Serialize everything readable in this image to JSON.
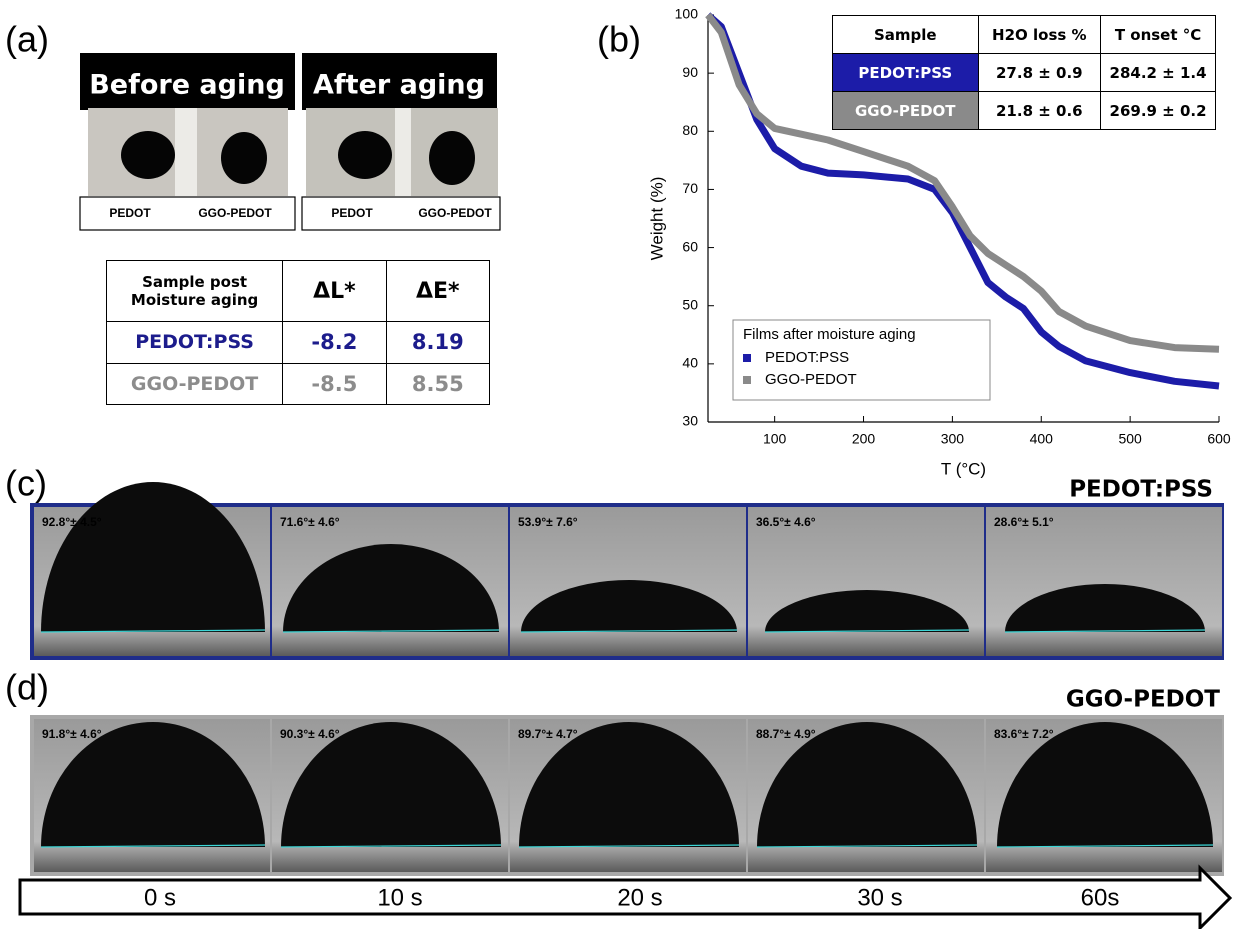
{
  "panel_labels": [
    "(a)",
    "(b)",
    "(c)",
    "(d)"
  ],
  "aging_photos": [
    {
      "title": "Before aging",
      "labels": [
        "PEDOT",
        "GGO-PEDOT"
      ]
    },
    {
      "title": "After aging",
      "labels": [
        "PEDOT",
        "GGO-PEDOT"
      ]
    }
  ],
  "color_table": {
    "header": [
      "Sample post Moisture aging",
      "ΔL*",
      "ΔE*"
    ],
    "rows": [
      [
        "PEDOT:PSS",
        "-8.2",
        "8.19"
      ],
      [
        "GGO-PEDOT",
        "-8.5",
        "8.55"
      ]
    ]
  },
  "chart_data": {
    "type": "line",
    "xlabel": "T (°C)",
    "ylabel": "Weight (%)",
    "x": [
      25,
      40,
      60,
      80,
      100,
      130,
      160,
      200,
      250,
      280,
      300,
      320,
      340,
      360,
      380,
      400,
      420,
      450,
      500,
      550,
      600
    ],
    "series": [
      {
        "name": "PEDOT:PSS",
        "color": "#1c1ca8",
        "values": [
          100,
          98,
          90,
          82,
          77,
          74,
          72.8,
          72.5,
          71.8,
          70,
          66,
          60,
          54,
          51.5,
          49.5,
          45.5,
          43,
          40.5,
          38.5,
          37,
          36.2
        ]
      },
      {
        "name": "GGO-PEDOT",
        "color": "#8a8a8a",
        "values": [
          100,
          97,
          88,
          83,
          80.5,
          79.5,
          78.5,
          76.5,
          74,
          71.5,
          67,
          62,
          59,
          57,
          55,
          52.5,
          49,
          46.5,
          44,
          42.8,
          42.5
        ]
      }
    ],
    "xlim": [
      25,
      600
    ],
    "ylim": [
      30,
      100
    ],
    "xticks": [
      100,
      200,
      300,
      400,
      500,
      600
    ],
    "yticks": [
      30,
      40,
      50,
      60,
      70,
      80,
      90,
      100
    ],
    "legend_title": "Films after moisture aging",
    "legend": "lower left",
    "inset_table": {
      "header": [
        "Sample",
        "H2O loss %",
        "T onset °C"
      ],
      "rows": [
        [
          "PEDOT:PSS",
          "27.8 ± 0.9",
          "284.2 ± 1.4"
        ],
        [
          "GGO-PEDOT",
          "21.8 ± 0.6",
          "269.9 ± 0.2"
        ]
      ]
    }
  },
  "contact_angle": {
    "pedot": {
      "title": "PEDOT:PSS",
      "angles": [
        "92.8°± 4.5°",
        "71.6°± 4.6°",
        "53.9°± 7.6°",
        "36.5°± 4.6°",
        "28.6°± 5.1°"
      ]
    },
    "ggo": {
      "title": "GGO-PEDOT",
      "angles": [
        "91.8°± 4.6°",
        "90.3°± 4.6°",
        "89.7°± 4.7°",
        "88.7°± 4.9°",
        "83.6°± 7.2°"
      ]
    },
    "times": [
      "0 s",
      "10 s",
      "20 s",
      "30 s",
      "60s"
    ]
  }
}
